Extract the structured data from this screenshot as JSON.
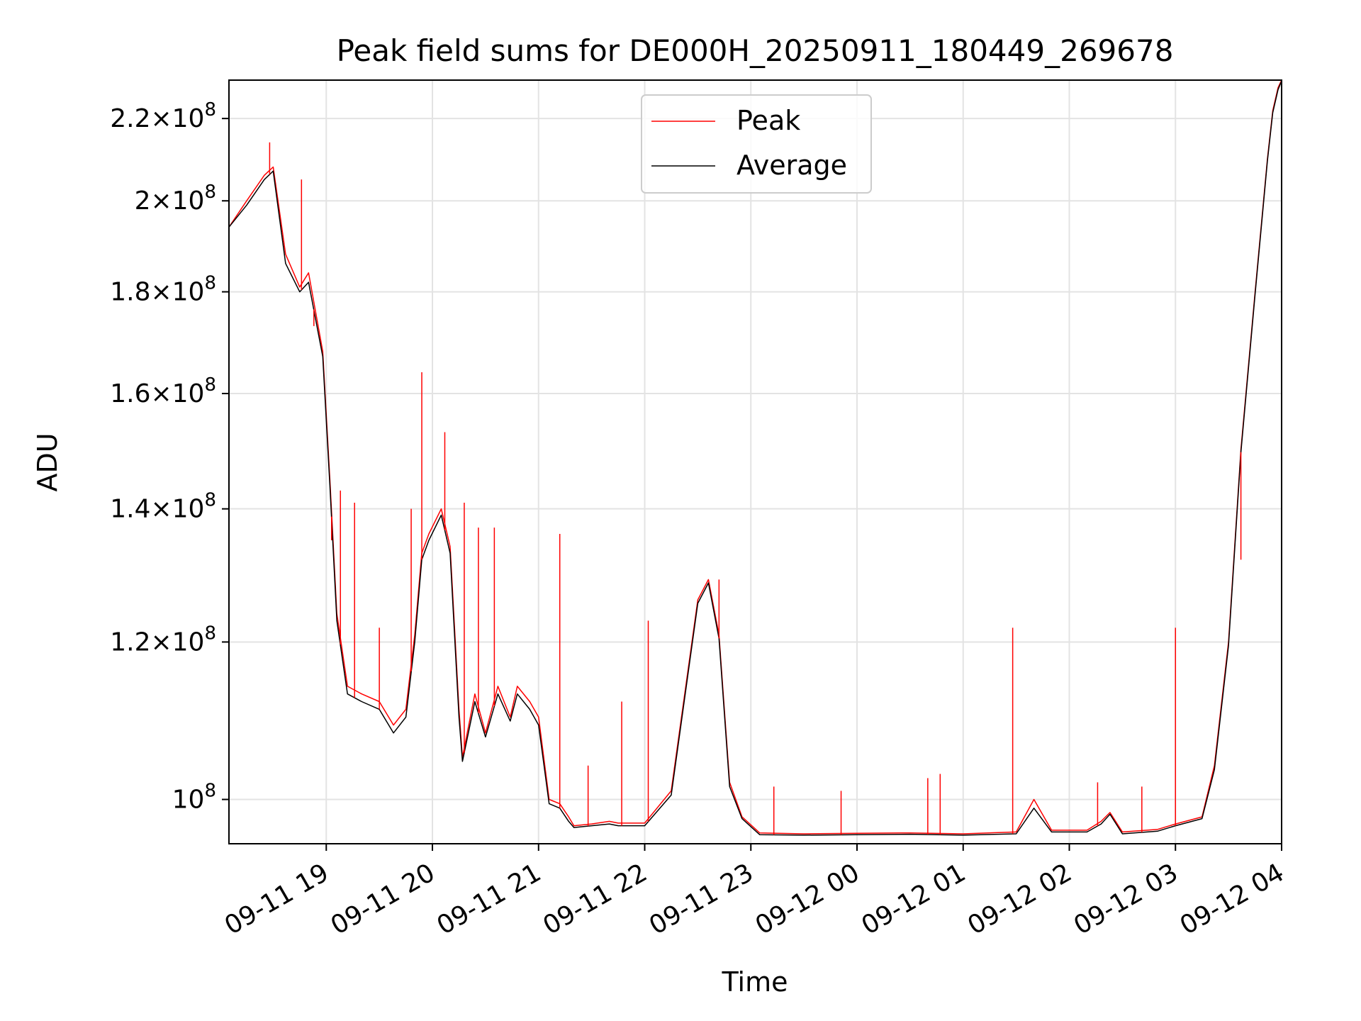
{
  "chart_data": {
    "type": "line",
    "title": "Peak field sums for DE000H_20250911_180449_269678",
    "xlabel": "Time",
    "ylabel": "ADU",
    "yscale": "log",
    "grid": true,
    "legend_position": "top-center",
    "xlim": [
      "2025-09-11 18:05",
      "2025-09-12 04:00"
    ],
    "ylim": [
      95000000,
      230000000
    ],
    "x_ticks": [
      "09-11 19",
      "09-11 20",
      "09-11 21",
      "09-11 22",
      "09-11 23",
      "09-12 00",
      "09-12 01",
      "09-12 02",
      "09-12 03",
      "09-12 04"
    ],
    "y_ticks": [
      {
        "value": 100000000,
        "mantissa": "",
        "exp": "8"
      },
      {
        "value": 120000000,
        "mantissa": "1.2",
        "exp": "8"
      },
      {
        "value": 140000000,
        "mantissa": "1.4",
        "exp": "8"
      },
      {
        "value": 160000000,
        "mantissa": "1.6",
        "exp": "8"
      },
      {
        "value": 180000000,
        "mantissa": "1.8",
        "exp": "8"
      },
      {
        "value": 200000000,
        "mantissa": "2",
        "exp": "8"
      },
      {
        "value": 220000000,
        "mantissa": "2.2",
        "exp": "8"
      }
    ],
    "series": [
      {
        "name": "Peak",
        "color": "#ff0000",
        "x": [
          "2025-09-11 18:05",
          "2025-09-11 18:15",
          "2025-09-11 18:25",
          "2025-09-11 18:30",
          "2025-09-11 18:37",
          "2025-09-11 18:45",
          "2025-09-11 18:50",
          "2025-09-11 18:58",
          "2025-09-11 19:02",
          "2025-09-11 19:06",
          "2025-09-11 19:12",
          "2025-09-11 19:20",
          "2025-09-11 19:30",
          "2025-09-11 19:38",
          "2025-09-11 19:45",
          "2025-09-11 19:50",
          "2025-09-11 19:54",
          "2025-09-11 19:58",
          "2025-09-11 20:05",
          "2025-09-11 20:10",
          "2025-09-11 20:15",
          "2025-09-11 20:17",
          "2025-09-11 20:24",
          "2025-09-11 20:30",
          "2025-09-11 20:37",
          "2025-09-11 20:44",
          "2025-09-11 20:48",
          "2025-09-11 20:55",
          "2025-09-11 21:00",
          "2025-09-11 21:06",
          "2025-09-11 21:12",
          "2025-09-11 21:17",
          "2025-09-11 21:20",
          "2025-09-11 21:30",
          "2025-09-11 21:40",
          "2025-09-11 21:45",
          "2025-09-11 22:00",
          "2025-09-11 22:15",
          "2025-09-11 22:30",
          "2025-09-11 22:36",
          "2025-09-11 22:42",
          "2025-09-11 22:48",
          "2025-09-11 22:55",
          "2025-09-11 23:05",
          "2025-09-11 23:30",
          "2025-09-12 00:00",
          "2025-09-12 00:30",
          "2025-09-12 01:00",
          "2025-09-12 01:30",
          "2025-09-12 01:40",
          "2025-09-12 01:50",
          "2025-09-12 02:10",
          "2025-09-12 02:18",
          "2025-09-12 02:23",
          "2025-09-12 02:30",
          "2025-09-12 02:50",
          "2025-09-12 03:00",
          "2025-09-12 03:15",
          "2025-09-12 03:22",
          "2025-09-12 03:30",
          "2025-09-12 03:37",
          "2025-09-12 03:45",
          "2025-09-12 03:52",
          "2025-09-12 03:55",
          "2025-09-12 03:58",
          "2025-09-12 04:00"
        ],
        "y": [
          194000000,
          200000000,
          206000000,
          208000000,
          188000000,
          181000000,
          184000000,
          168000000,
          145000000,
          124000000,
          114000000,
          113000000,
          112000000,
          109000000,
          111000000,
          121000000,
          133000000,
          136000000,
          140000000,
          134000000,
          111000000,
          105000000,
          113000000,
          108000000,
          114000000,
          110000000,
          114000000,
          112000000,
          110000000,
          100000000,
          99500000,
          98000000,
          97000000,
          97200000,
          97500000,
          97300000,
          97300000,
          101000000,
          126000000,
          129000000,
          121000000,
          102000000,
          98000000,
          96200000,
          96100000,
          96150000,
          96200000,
          96100000,
          96300000,
          100000000,
          96500000,
          96500000,
          97500000,
          98500000,
          96300000,
          96600000,
          97200000,
          98000000,
          104000000,
          120000000,
          150000000,
          180000000,
          210000000,
          222000000,
          228000000,
          230000000
        ]
      },
      {
        "name": "Average",
        "color": "#000000",
        "x": [
          "2025-09-11 18:05",
          "2025-09-11 18:15",
          "2025-09-11 18:25",
          "2025-09-11 18:30",
          "2025-09-11 18:37",
          "2025-09-11 18:45",
          "2025-09-11 18:50",
          "2025-09-11 18:58",
          "2025-09-11 19:02",
          "2025-09-11 19:06",
          "2025-09-11 19:12",
          "2025-09-11 19:20",
          "2025-09-11 19:30",
          "2025-09-11 19:38",
          "2025-09-11 19:45",
          "2025-09-11 19:50",
          "2025-09-11 19:54",
          "2025-09-11 19:58",
          "2025-09-11 20:05",
          "2025-09-11 20:10",
          "2025-09-11 20:15",
          "2025-09-11 20:17",
          "2025-09-11 20:24",
          "2025-09-11 20:30",
          "2025-09-11 20:37",
          "2025-09-11 20:44",
          "2025-09-11 20:48",
          "2025-09-11 20:55",
          "2025-09-11 21:00",
          "2025-09-11 21:06",
          "2025-09-11 21:12",
          "2025-09-11 21:17",
          "2025-09-11 21:20",
          "2025-09-11 21:30",
          "2025-09-11 21:40",
          "2025-09-11 21:45",
          "2025-09-11 22:00",
          "2025-09-11 22:15",
          "2025-09-11 22:30",
          "2025-09-11 22:36",
          "2025-09-11 22:42",
          "2025-09-11 22:48",
          "2025-09-11 22:55",
          "2025-09-11 23:05",
          "2025-09-11 23:30",
          "2025-09-12 00:00",
          "2025-09-12 00:30",
          "2025-09-12 01:00",
          "2025-09-12 01:30",
          "2025-09-12 01:40",
          "2025-09-12 01:50",
          "2025-09-12 02:10",
          "2025-09-12 02:18",
          "2025-09-12 02:23",
          "2025-09-12 02:30",
          "2025-09-12 02:50",
          "2025-09-12 03:00",
          "2025-09-12 03:15",
          "2025-09-12 03:22",
          "2025-09-12 03:30",
          "2025-09-12 03:37",
          "2025-09-12 03:45",
          "2025-09-12 03:52",
          "2025-09-12 03:55",
          "2025-09-12 03:58",
          "2025-09-12 04:00"
        ],
        "y": [
          194000000,
          199000000,
          205000000,
          207000000,
          186000000,
          180000000,
          182000000,
          167000000,
          144000000,
          123000000,
          113000000,
          112000000,
          111000000,
          108000000,
          110000000,
          120000000,
          132000000,
          135000000,
          139000000,
          133000000,
          110000000,
          104500000,
          112000000,
          107500000,
          113000000,
          109500000,
          113000000,
          111000000,
          109000000,
          99500000,
          99000000,
          97500000,
          96800000,
          97000000,
          97200000,
          97000000,
          97000000,
          100500000,
          125500000,
          128500000,
          120500000,
          101500000,
          97800000,
          96000000,
          95950000,
          96000000,
          96050000,
          95950000,
          96100000,
          99000000,
          96300000,
          96300000,
          97200000,
          98300000,
          96100000,
          96400000,
          97000000,
          97800000,
          103500000,
          119500000,
          149500000,
          179500000,
          209500000,
          221500000,
          227500000,
          229800000
        ]
      }
    ],
    "spikes": [
      {
        "series": "Peak",
        "x": "2025-09-11 18:28",
        "y": 214000000
      },
      {
        "series": "Peak",
        "x": "2025-09-11 18:46",
        "y": 205000000
      },
      {
        "series": "Peak",
        "x": "2025-09-11 18:53",
        "y": 173000000
      },
      {
        "series": "Peak",
        "x": "2025-09-11 19:03",
        "y": 135000000
      },
      {
        "series": "Peak",
        "x": "2025-09-11 19:08",
        "y": 143000000
      },
      {
        "series": "Peak",
        "x": "2025-09-11 19:16",
        "y": 141000000
      },
      {
        "series": "Peak",
        "x": "2025-09-11 19:30",
        "y": 122000000
      },
      {
        "series": "Peak",
        "x": "2025-09-11 19:48",
        "y": 140000000
      },
      {
        "series": "Peak",
        "x": "2025-09-11 19:54",
        "y": 164000000
      },
      {
        "series": "Peak",
        "x": "2025-09-11 20:07",
        "y": 153000000
      },
      {
        "series": "Peak",
        "x": "2025-09-11 20:18",
        "y": 141000000
      },
      {
        "series": "Peak",
        "x": "2025-09-11 20:26",
        "y": 137000000
      },
      {
        "series": "Peak",
        "x": "2025-09-11 20:35",
        "y": 137000000
      },
      {
        "series": "Peak",
        "x": "2025-09-11 21:12",
        "y": 136000000
      },
      {
        "series": "Peak",
        "x": "2025-09-11 21:28",
        "y": 104000000
      },
      {
        "series": "Peak",
        "x": "2025-09-11 21:47",
        "y": 112000000
      },
      {
        "series": "Peak",
        "x": "2025-09-11 22:02",
        "y": 123000000
      },
      {
        "series": "Peak",
        "x": "2025-09-11 22:42",
        "y": 129000000
      },
      {
        "series": "Peak",
        "x": "2025-09-11 23:13",
        "y": 101500000
      },
      {
        "series": "Peak",
        "x": "2025-09-11 23:51",
        "y": 101000000
      },
      {
        "series": "Peak",
        "x": "2025-09-12 00:40",
        "y": 102500000
      },
      {
        "series": "Peak",
        "x": "2025-09-12 00:47",
        "y": 103000000
      },
      {
        "series": "Peak",
        "x": "2025-09-12 01:28",
        "y": 122000000
      },
      {
        "series": "Peak",
        "x": "2025-09-12 02:16",
        "y": 102000000
      },
      {
        "series": "Peak",
        "x": "2025-09-12 02:41",
        "y": 101500000
      },
      {
        "series": "Peak",
        "x": "2025-09-12 03:00",
        "y": 122000000
      },
      {
        "series": "Peak",
        "x": "2025-09-12 03:37",
        "y": 132000000
      }
    ]
  }
}
